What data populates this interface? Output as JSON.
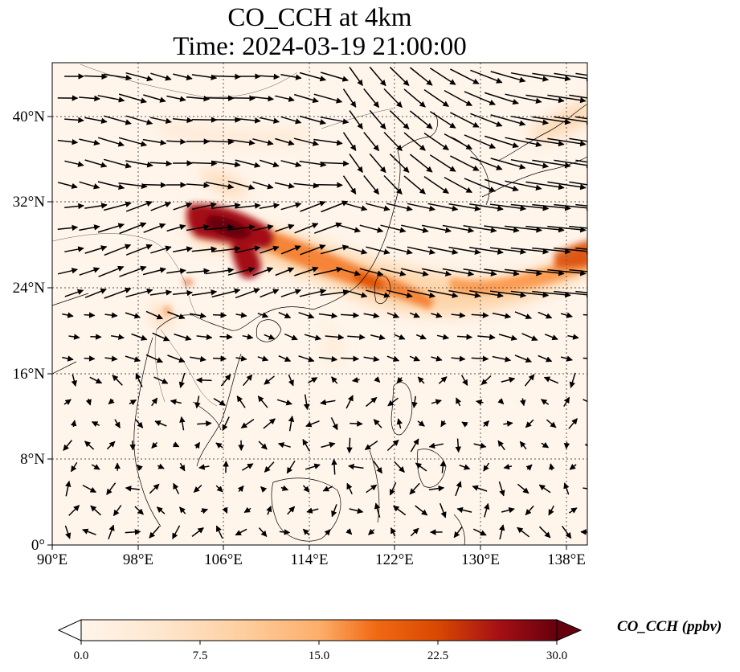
{
  "title": {
    "line1": "CO_CCH at 4km",
    "line2": "Time: 2024-03-19 21:00:00"
  },
  "axes": {
    "lon_ticks": [
      "90°E",
      "98°E",
      "106°E",
      "114°E",
      "122°E",
      "130°E",
      "138°E"
    ],
    "lat_ticks": [
      "0°",
      "8°N",
      "16°N",
      "24°N",
      "32°N",
      "40°N"
    ],
    "lon_range": [
      90,
      140
    ],
    "lat_range": [
      0,
      45
    ],
    "grid": "dotted"
  },
  "colorbar": {
    "label": "CO_CCH (ppbv)",
    "ticks": [
      "0.0",
      "7.5",
      "15.0",
      "22.5",
      "30.0"
    ],
    "range": [
      0,
      30
    ],
    "extend": "both",
    "colors": [
      "#fff5eb",
      "#fdd49e",
      "#fdae6b",
      "#f16913",
      "#d94801",
      "#a50f15",
      "#67000d"
    ]
  }
}
